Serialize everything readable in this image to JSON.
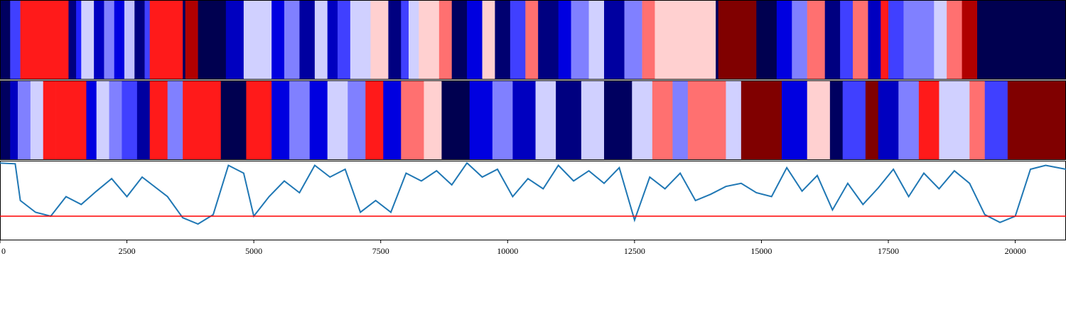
{
  "chart_data": [
    {
      "type": "heatmap",
      "panel": "top-strip",
      "colormap": "seismic",
      "x_range": [
        0,
        21000
      ],
      "segments": [
        [
          0,
          200,
          "#000060"
        ],
        [
          200,
          400,
          "#4040ff"
        ],
        [
          400,
          1350,
          "#ff1a1a"
        ],
        [
          1350,
          1500,
          "#000080"
        ],
        [
          1500,
          1600,
          "#2020ff"
        ],
        [
          1600,
          1850,
          "#d0d0ff"
        ],
        [
          1850,
          2050,
          "#0000c0"
        ],
        [
          2050,
          2250,
          "#8080ff"
        ],
        [
          2250,
          2450,
          "#0000e0"
        ],
        [
          2450,
          2650,
          "#c0c0ff"
        ],
        [
          2650,
          2850,
          "#000080"
        ],
        [
          2850,
          2950,
          "#4040ff"
        ],
        [
          2950,
          3600,
          "#ff1a1a"
        ],
        [
          3600,
          3650,
          "#000060"
        ],
        [
          3650,
          3900,
          "#b00000"
        ],
        [
          3900,
          4450,
          "#000050"
        ],
        [
          4450,
          4800,
          "#0000c0"
        ],
        [
          4800,
          5350,
          "#d0d0ff"
        ],
        [
          5350,
          5600,
          "#0000e0"
        ],
        [
          5600,
          5900,
          "#8080ff"
        ],
        [
          5900,
          6200,
          "#0000a0"
        ],
        [
          6200,
          6450,
          "#d0d0ff"
        ],
        [
          6450,
          6650,
          "#0000c0"
        ],
        [
          6650,
          6900,
          "#4040ff"
        ],
        [
          6900,
          7300,
          "#d0d0ff"
        ],
        [
          7300,
          7650,
          "#ffd0d0"
        ],
        [
          7650,
          7900,
          "#000080"
        ],
        [
          7900,
          8050,
          "#4040ff"
        ],
        [
          8050,
          8250,
          "#d0d0ff"
        ],
        [
          8250,
          8650,
          "#ffd0d0"
        ],
        [
          8650,
          8900,
          "#ff7070"
        ],
        [
          8900,
          9200,
          "#000060"
        ],
        [
          9200,
          9500,
          "#0000e0"
        ],
        [
          9500,
          9750,
          "#ffd0d0"
        ],
        [
          9750,
          10050,
          "#000070"
        ],
        [
          10050,
          10350,
          "#4040ff"
        ],
        [
          10350,
          10600,
          "#ff7070"
        ],
        [
          10600,
          11000,
          "#000080"
        ],
        [
          11000,
          11250,
          "#0000e0"
        ],
        [
          11250,
          11600,
          "#8080ff"
        ],
        [
          11600,
          11900,
          "#d0d0ff"
        ],
        [
          11900,
          12300,
          "#0000a0"
        ],
        [
          12300,
          12650,
          "#8080ff"
        ],
        [
          12650,
          12900,
          "#ff7070"
        ],
        [
          12900,
          14100,
          "#ffd0d0"
        ],
        [
          14100,
          14150,
          "#000060"
        ],
        [
          14150,
          14900,
          "#800000"
        ],
        [
          14900,
          15300,
          "#000050"
        ],
        [
          15300,
          15600,
          "#0000e0"
        ],
        [
          15600,
          15900,
          "#8080ff"
        ],
        [
          15900,
          16250,
          "#ff7070"
        ],
        [
          16250,
          16550,
          "#000080"
        ],
        [
          16550,
          16800,
          "#4040ff"
        ],
        [
          16800,
          17100,
          "#ff7070"
        ],
        [
          17100,
          17350,
          "#0000c0"
        ],
        [
          17350,
          17500,
          "#ff1a1a"
        ],
        [
          17500,
          17800,
          "#4040ff"
        ],
        [
          17800,
          18400,
          "#8080ff"
        ],
        [
          18400,
          18650,
          "#d0d0ff"
        ],
        [
          18650,
          18950,
          "#ff7070"
        ],
        [
          18950,
          19250,
          "#b00000"
        ],
        [
          19250,
          21000,
          "#000050"
        ]
      ]
    },
    {
      "type": "heatmap",
      "panel": "middle-strip",
      "colormap": "seismic",
      "x_range": [
        0,
        21000
      ],
      "segments": [
        [
          0,
          200,
          "#000060"
        ],
        [
          200,
          350,
          "#0000c0"
        ],
        [
          350,
          600,
          "#8080ff"
        ],
        [
          600,
          850,
          "#d0d0ff"
        ],
        [
          850,
          1100,
          "#ff1a1a"
        ],
        [
          1100,
          1400,
          "#ff1a1a"
        ],
        [
          1400,
          1700,
          "#ff1a1a"
        ],
        [
          1700,
          1900,
          "#0000e0"
        ],
        [
          1900,
          2150,
          "#d0d0ff"
        ],
        [
          2150,
          2400,
          "#8080ff"
        ],
        [
          2400,
          2700,
          "#4040ff"
        ],
        [
          2700,
          2950,
          "#0000a0"
        ],
        [
          2950,
          3300,
          "#ff1a1a"
        ],
        [
          3300,
          3600,
          "#8080ff"
        ],
        [
          3600,
          3850,
          "#ff1a1a"
        ],
        [
          3850,
          4350,
          "#ff1a1a"
        ],
        [
          4350,
          4850,
          "#000050"
        ],
        [
          4850,
          5350,
          "#ff1a1a"
        ],
        [
          5350,
          5700,
          "#0000e0"
        ],
        [
          5700,
          6100,
          "#8080ff"
        ],
        [
          6100,
          6450,
          "#0000e0"
        ],
        [
          6450,
          6850,
          "#d0d0ff"
        ],
        [
          6850,
          7200,
          "#8080ff"
        ],
        [
          7200,
          7550,
          "#ff1a1a"
        ],
        [
          7550,
          7900,
          "#0000e0"
        ],
        [
          7900,
          8350,
          "#ff7070"
        ],
        [
          8350,
          8700,
          "#ffd0d0"
        ],
        [
          8700,
          9250,
          "#000050"
        ],
        [
          9250,
          9700,
          "#0000e0"
        ],
        [
          9700,
          10100,
          "#8080ff"
        ],
        [
          10100,
          10550,
          "#0000c0"
        ],
        [
          10550,
          10950,
          "#d0d0ff"
        ],
        [
          10950,
          11450,
          "#000080"
        ],
        [
          11450,
          11900,
          "#d0d0ff"
        ],
        [
          11900,
          12450,
          "#000060"
        ],
        [
          12450,
          12850,
          "#d0d0ff"
        ],
        [
          12850,
          13250,
          "#ff7070"
        ],
        [
          13250,
          13550,
          "#8080ff"
        ],
        [
          13550,
          14300,
          "#ff7070"
        ],
        [
          14300,
          14600,
          "#d0d0ff"
        ],
        [
          14600,
          15400,
          "#800000"
        ],
        [
          15400,
          15900,
          "#0000e0"
        ],
        [
          15900,
          16350,
          "#ffd0d0"
        ],
        [
          16350,
          16600,
          "#000060"
        ],
        [
          16600,
          17050,
          "#4040ff"
        ],
        [
          17050,
          17300,
          "#800000"
        ],
        [
          17300,
          17700,
          "#0000c0"
        ],
        [
          17700,
          18100,
          "#8080ff"
        ],
        [
          18100,
          18500,
          "#ff1a1a"
        ],
        [
          18500,
          19100,
          "#d0d0ff"
        ],
        [
          19100,
          19400,
          "#ff7070"
        ],
        [
          19400,
          19850,
          "#4040ff"
        ],
        [
          19850,
          20150,
          "#800000"
        ],
        [
          20150,
          20600,
          "#800000"
        ],
        [
          20600,
          21000,
          "#800000"
        ]
      ]
    },
    {
      "type": "line",
      "panel": "bottom-trace",
      "xlim": [
        0,
        21000
      ],
      "ylim": [
        0,
        1
      ],
      "line_color": "#1f77b4",
      "threshold": 0.3,
      "threshold_color": "#ff0000",
      "xticks": [
        0,
        2500,
        5000,
        7500,
        10000,
        12500,
        15000,
        17500,
        20000
      ],
      "xtick_labels": [
        "0",
        "2500",
        "5000",
        "7500",
        "10000",
        "12500",
        "15000",
        "17500",
        "20000"
      ],
      "x": [
        0,
        300,
        400,
        700,
        1000,
        1300,
        1600,
        1900,
        2200,
        2500,
        2800,
        3000,
        3300,
        3600,
        3900,
        4200,
        4500,
        4800,
        5000,
        5300,
        5600,
        5900,
        6200,
        6500,
        6800,
        7100,
        7400,
        7700,
        8000,
        8300,
        8600,
        8900,
        9200,
        9500,
        9800,
        10100,
        10400,
        10700,
        11000,
        11300,
        11600,
        11900,
        12200,
        12500,
        12800,
        13100,
        13400,
        13700,
        14000,
        14300,
        14600,
        14900,
        15200,
        15500,
        15800,
        16100,
        16400,
        16700,
        17000,
        17300,
        17600,
        17900,
        18200,
        18500,
        18800,
        19100,
        19400,
        19700,
        20000,
        20300,
        20600,
        21000
      ],
      "y": [
        0.98,
        0.97,
        0.5,
        0.35,
        0.3,
        0.55,
        0.45,
        0.62,
        0.78,
        0.55,
        0.8,
        0.7,
        0.55,
        0.28,
        0.2,
        0.32,
        0.95,
        0.85,
        0.3,
        0.55,
        0.75,
        0.6,
        0.95,
        0.8,
        0.9,
        0.35,
        0.5,
        0.35,
        0.85,
        0.75,
        0.88,
        0.7,
        0.98,
        0.8,
        0.9,
        0.55,
        0.78,
        0.65,
        0.95,
        0.75,
        0.88,
        0.72,
        0.92,
        0.25,
        0.8,
        0.65,
        0.85,
        0.5,
        0.58,
        0.68,
        0.72,
        0.6,
        0.55,
        0.92,
        0.62,
        0.82,
        0.38,
        0.72,
        0.45,
        0.66,
        0.9,
        0.55,
        0.85,
        0.65,
        0.88,
        0.72,
        0.32,
        0.22,
        0.3,
        0.9,
        0.95,
        0.9
      ]
    }
  ]
}
